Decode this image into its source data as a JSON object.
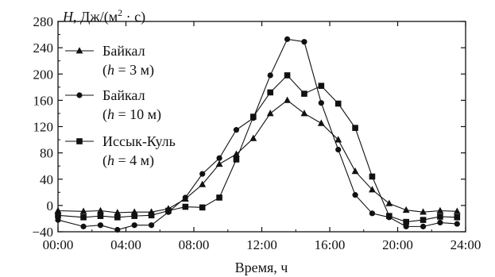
{
  "chart_data": {
    "type": "line",
    "ylabel_var": "H",
    "ylabel_unit_pre": "Дж/(м",
    "ylabel_unit_sup": "2",
    "ylabel_unit_post": " · с)",
    "xlabel": "Время, ч",
    "xlim": [
      0,
      24
    ],
    "ylim": [
      -40,
      280
    ],
    "x_ticks": [
      0,
      4,
      8,
      12,
      16,
      20,
      24
    ],
    "x_tick_labels": [
      "00:00",
      "04:00",
      "08:00",
      "12:00",
      "16:00",
      "20:00",
      "24:00"
    ],
    "y_ticks": [
      -40,
      0,
      40,
      80,
      120,
      160,
      200,
      240,
      280
    ],
    "y_tick_labels": [
      "−40",
      "0",
      "40",
      "80",
      "120",
      "160",
      "200",
      "240",
      "280"
    ],
    "legend_position": "top-left",
    "series": [
      {
        "marker": "triangle",
        "legend_line1": "Байкал",
        "legend_line2_pre": "(",
        "legend_line2_var": "h",
        "legend_line2_post": " = 3 м)",
        "x": [
          0,
          1.5,
          2.5,
          3.5,
          4.5,
          5.5,
          6.5,
          7.5,
          8.5,
          9.5,
          10.5,
          11.5,
          12.5,
          13.5,
          14.5,
          15.5,
          16.5,
          17.5,
          18.5,
          19.5,
          20.5,
          21.5,
          22.5,
          23.5
        ],
        "y": [
          -8,
          -9,
          -8,
          -11,
          -10,
          -10,
          -5,
          10,
          32,
          63,
          78,
          102,
          140,
          160,
          140,
          125,
          100,
          52,
          24,
          3,
          -7,
          -10,
          -8,
          -9
        ]
      },
      {
        "marker": "circle",
        "legend_line1": "Байкал",
        "legend_line2_pre": "(",
        "legend_line2_var": "h",
        "legend_line2_post": " = 10 м)",
        "x": [
          0,
          1.5,
          2.5,
          3.5,
          4.5,
          5.5,
          6.5,
          7.5,
          8.5,
          9.5,
          10.5,
          11.5,
          12.5,
          13.5,
          14.5,
          15.5,
          16.5,
          17.5,
          18.5,
          19.5,
          20.5,
          21.5,
          22.5,
          23.5
        ],
        "y": [
          -22,
          -32,
          -30,
          -37,
          -30,
          -30,
          -10,
          12,
          48,
          72,
          115,
          133,
          198,
          253,
          249,
          156,
          85,
          16,
          -12,
          -18,
          -32,
          -32,
          -26,
          -28
        ]
      },
      {
        "marker": "square",
        "legend_line1": "Иссык-Куль",
        "legend_line2_pre": "(",
        "legend_line2_var": "h",
        "legend_line2_post": " = 4 м)",
        "x": [
          0,
          1.5,
          2.5,
          3.5,
          4.5,
          5.5,
          6.5,
          7.5,
          8.5,
          9.5,
          10.5,
          11.5,
          12.5,
          13.5,
          14.5,
          15.5,
          16.5,
          17.5,
          18.5,
          19.5,
          20.5,
          21.5,
          22.5,
          23.5
        ],
        "y": [
          -15,
          -18,
          -16,
          -18,
          -16,
          -15,
          -8,
          -2,
          -3,
          12,
          70,
          135,
          172,
          198,
          170,
          182,
          155,
          118,
          44,
          -16,
          -25,
          -22,
          -17,
          -18
        ]
      }
    ]
  }
}
